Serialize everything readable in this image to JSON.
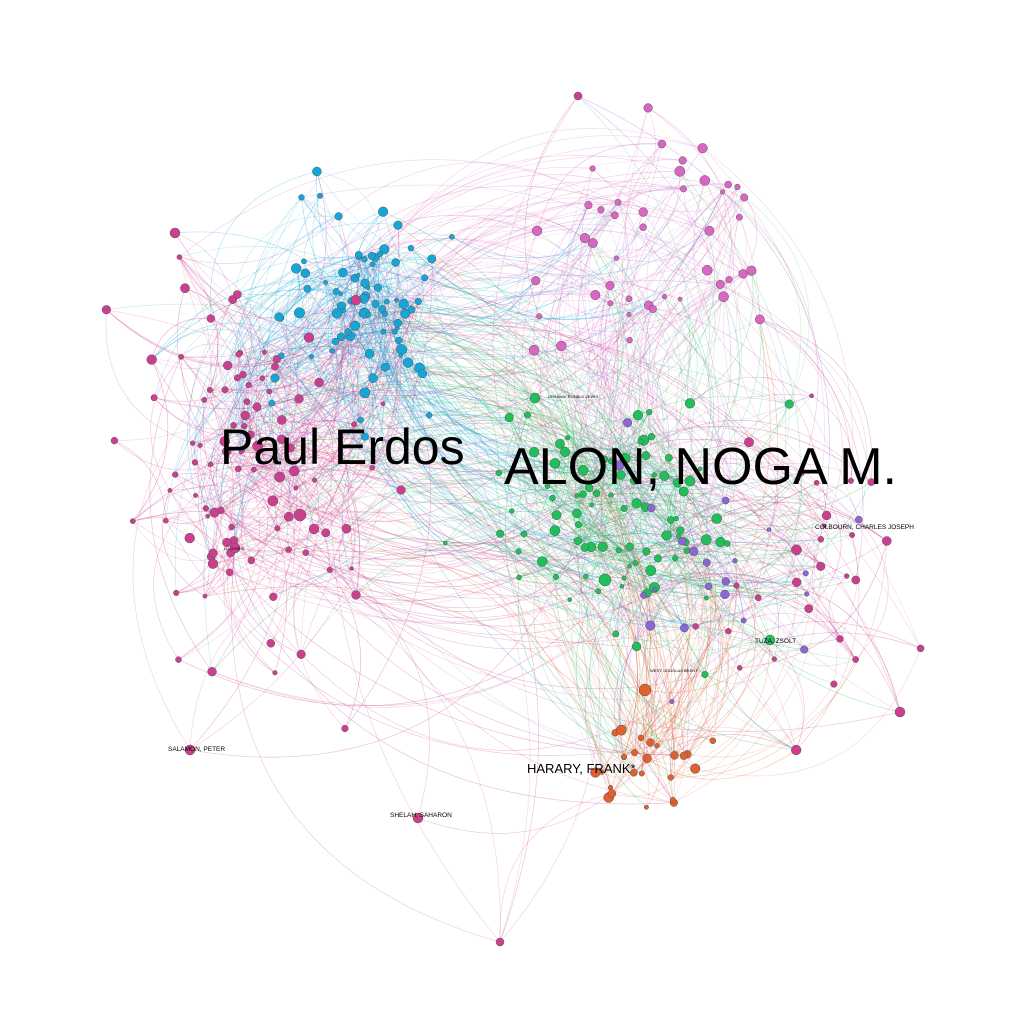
{
  "labels": {
    "erdos": "Paul Erdos",
    "alon": "ALON, NOGA M.",
    "harary": "HARARY, FRANK*",
    "colbourn": "COLBOURN, CHARLES JOSEPH",
    "tuza": "TUZA, ZSOLT",
    "salamon": "SALAMON, PETER",
    "shelah": "SHELAH, SAHARON",
    "lucchesi": "LUCCHESI",
    "graham": "GRAHAM, RONALD LEWIS",
    "west": "WEST, DOUGLAS BRENT"
  },
  "colors": {
    "background": "#ffffff",
    "pink": "#d966c2",
    "magenta": "#cc3f8f",
    "blue": "#14a6d9",
    "green": "#1fbf5a",
    "dark_green": "#129a45",
    "purple": "#8a66d6",
    "orange": "#e0602e"
  }
}
